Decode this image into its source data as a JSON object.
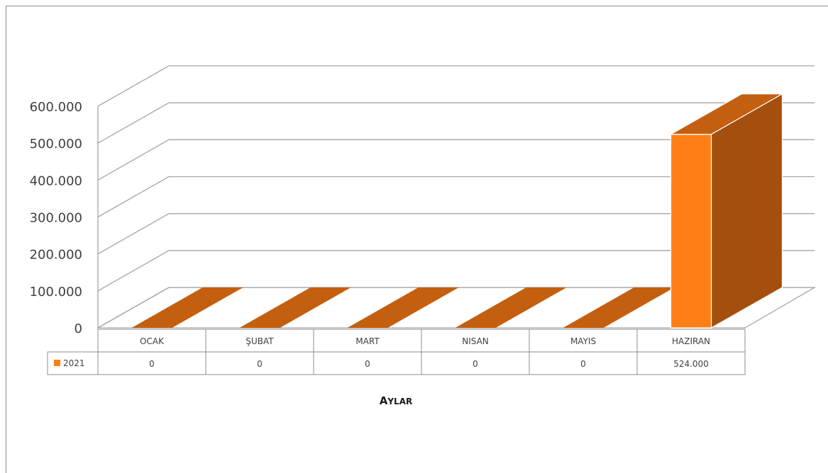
{
  "chart_data": {
    "type": "bar",
    "style": "3d",
    "categories": [
      "OCAK",
      "ŞUBAT",
      "MART",
      "NISAN",
      "MAYIS",
      "HAZIRAN"
    ],
    "series": [
      {
        "name": "2021",
        "values": [
          0,
          0,
          0,
          0,
          0,
          524000
        ],
        "value_labels": [
          "0",
          "0",
          "0",
          "0",
          "0",
          "524.000"
        ],
        "color": "#ff7f17"
      }
    ],
    "y_ticks": [
      "0",
      "100.000",
      "200.000",
      "300.000",
      "400.000",
      "500.000",
      "600.000"
    ],
    "ylim": [
      0,
      600000
    ],
    "xlabel_first": "A",
    "xlabel_rest": "YLAR",
    "data_table": true,
    "grid": true,
    "colors": {
      "bar_front": "#ff7f17",
      "bar_top": "#c45f10",
      "bar_side": "#a54f0e",
      "grid": "#a6a6a6"
    }
  }
}
